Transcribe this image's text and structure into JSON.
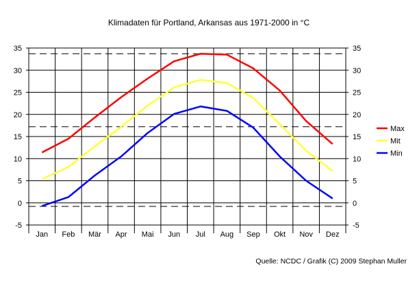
{
  "chart_data": {
    "type": "line",
    "title": "Klimadaten für Portland, Arkansas aus 1971-2000 in °C",
    "xlabel": "",
    "ylabel": "",
    "categories": [
      "Jan",
      "Feb",
      "Mär",
      "Apr",
      "Mai",
      "Jun",
      "Jul",
      "Aug",
      "Sep",
      "Okt",
      "Nov",
      "Dez"
    ],
    "ylim": [
      -5,
      35
    ],
    "yticks": [
      -5,
      0,
      5,
      10,
      15,
      20,
      25,
      30,
      35
    ],
    "grid": true,
    "legend_position": "right",
    "series": [
      {
        "name": "Max",
        "color": "#ff0000",
        "values": [
          11.4,
          14.5,
          19.3,
          23.9,
          28.1,
          32.0,
          33.7,
          33.5,
          30.4,
          25.4,
          18.5,
          13.3
        ]
      },
      {
        "name": "Mit",
        "color": "#ffff33",
        "values": [
          5.4,
          8.1,
          12.8,
          17.2,
          22.0,
          26.1,
          27.8,
          27.1,
          23.7,
          17.8,
          11.8,
          7.2
        ]
      },
      {
        "name": "Min",
        "color": "#0000ff",
        "values": [
          -0.7,
          1.3,
          6.2,
          10.5,
          15.8,
          20.1,
          21.8,
          20.8,
          17.0,
          10.5,
          5.0,
          1.0
        ]
      }
    ],
    "reference_lines": [
      33.7,
      17.2,
      -0.8
    ],
    "source": "Quelle: NCDC / Grafik (C) 2009 Stephan Muller"
  }
}
